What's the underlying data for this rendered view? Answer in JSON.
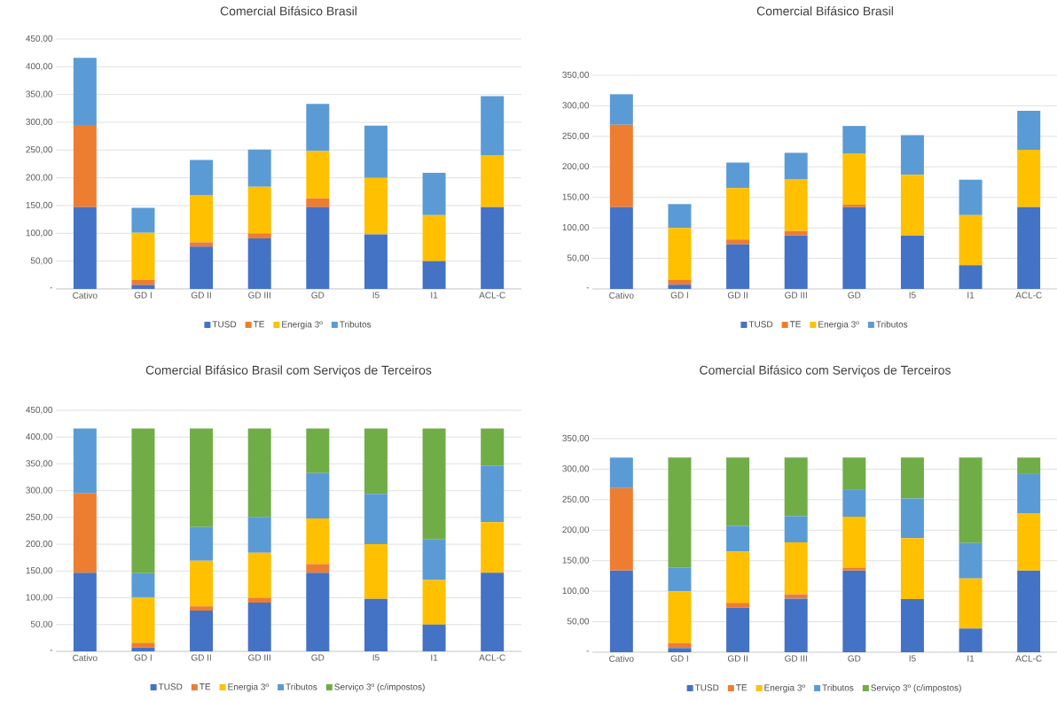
{
  "chart_data": [
    {
      "type": "bar",
      "stacked": true,
      "title": "Comercial Bifásico Brasil",
      "categories": [
        "Cativo",
        "GD I",
        "GD II",
        "GD III",
        "GD",
        "I5",
        "I1",
        "ACL-C"
      ],
      "series": [
        {
          "name": "TUSD",
          "color": "#4472c4",
          "values": [
            147,
            7,
            76,
            91,
            147,
            98,
            50,
            147
          ]
        },
        {
          "name": "TE",
          "color": "#ed7d31",
          "values": [
            148,
            9,
            8,
            9,
            16,
            0,
            0,
            0
          ]
        },
        {
          "name": "Energia 3º",
          "color": "#ffc000",
          "values": [
            0,
            85,
            85,
            84,
            85,
            102,
            83,
            94
          ]
        },
        {
          "name": "Tributos",
          "color": "#5b9bd5",
          "values": [
            121,
            45,
            63,
            67,
            85,
            94,
            76,
            106
          ]
        }
      ],
      "ylim": [
        0,
        450
      ],
      "yticks": [
        {
          "value": 0,
          "label": "-"
        },
        {
          "value": 50,
          "label": "50,00"
        },
        {
          "value": 100,
          "label": "100,00"
        },
        {
          "value": 150,
          "label": "150,00"
        },
        {
          "value": 200,
          "label": "200,00"
        },
        {
          "value": 250,
          "label": "250,00"
        },
        {
          "value": 300,
          "label": "300,00"
        },
        {
          "value": 350,
          "label": "350,00"
        },
        {
          "value": 400,
          "label": "400,00"
        },
        {
          "value": 450,
          "label": "450,00"
        }
      ],
      "grid": "y",
      "legend": "bottom"
    },
    {
      "type": "bar",
      "stacked": true,
      "title": "Comercial Bifásico Brasil",
      "categories": [
        "Cativo",
        "GD I",
        "GD II",
        "GD III",
        "GD",
        "I5",
        "I1",
        "ACL-C"
      ],
      "series": [
        {
          "name": "TUSD",
          "color": "#4472c4",
          "values": [
            134,
            7,
            73,
            88,
            134,
            87,
            39,
            134
          ]
        },
        {
          "name": "TE",
          "color": "#ed7d31",
          "values": [
            135,
            8,
            8,
            7,
            4,
            0,
            0,
            0
          ]
        },
        {
          "name": "Energia 3º",
          "color": "#ffc000",
          "values": [
            0,
            85,
            84,
            85,
            84,
            100,
            82,
            94
          ]
        },
        {
          "name": "Tributos",
          "color": "#5b9bd5",
          "values": [
            50,
            39,
            42,
            43,
            45,
            65,
            58,
            64
          ]
        }
      ],
      "ylim": [
        0,
        350
      ],
      "yticks": [
        {
          "value": 0,
          "label": "-"
        },
        {
          "value": 50,
          "label": "50,00"
        },
        {
          "value": 100,
          "label": "100,00"
        },
        {
          "value": 150,
          "label": "150,00"
        },
        {
          "value": 200,
          "label": "200,00"
        },
        {
          "value": 250,
          "label": "250,00"
        },
        {
          "value": 300,
          "label": "300,00"
        },
        {
          "value": 350,
          "label": "350,00"
        }
      ],
      "grid": "y",
      "legend": "bottom"
    },
    {
      "type": "bar",
      "stacked": true,
      "title": "Comercial Bifásico Brasil com Serviços de Terceiros",
      "categories": [
        "Cativo",
        "GD I",
        "GD II",
        "GD III",
        "GD",
        "I5",
        "I1",
        "ACL-C"
      ],
      "series": [
        {
          "name": "TUSD",
          "color": "#4472c4",
          "values": [
            147,
            7,
            76,
            91,
            147,
            98,
            50,
            147
          ]
        },
        {
          "name": "TE",
          "color": "#ed7d31",
          "values": [
            148,
            9,
            8,
            9,
            16,
            0,
            0,
            0
          ]
        },
        {
          "name": "Energia 3º",
          "color": "#ffc000",
          "values": [
            0,
            85,
            85,
            84,
            85,
            102,
            83,
            94
          ]
        },
        {
          "name": "Tributos",
          "color": "#5b9bd5",
          "values": [
            121,
            45,
            63,
            67,
            85,
            94,
            76,
            106
          ]
        },
        {
          "name": "Serviço 3º (c/impostos)",
          "color": "#70ad47",
          "values": [
            0,
            270,
            184,
            165,
            83,
            122,
            207,
            69
          ]
        }
      ],
      "ylim": [
        0,
        450
      ],
      "yticks": [
        {
          "value": 0,
          "label": "-"
        },
        {
          "value": 50,
          "label": "50,00"
        },
        {
          "value": 100,
          "label": "100,00"
        },
        {
          "value": 150,
          "label": "150,00"
        },
        {
          "value": 200,
          "label": "200,00"
        },
        {
          "value": 250,
          "label": "250,00"
        },
        {
          "value": 300,
          "label": "300,00"
        },
        {
          "value": 350,
          "label": "350,00"
        },
        {
          "value": 400,
          "label": "400,00"
        },
        {
          "value": 450,
          "label": "450,00"
        }
      ],
      "grid": "y",
      "legend": "bottom"
    },
    {
      "type": "bar",
      "stacked": true,
      "title": "Comercial Bifásico com Serviços de Terceiros",
      "categories": [
        "Cativo",
        "GD I",
        "GD II",
        "GD III",
        "GD",
        "I5",
        "I1",
        "ACL-C"
      ],
      "series": [
        {
          "name": "TUSD",
          "color": "#4472c4",
          "values": [
            134,
            7,
            73,
            88,
            134,
            87,
            39,
            134
          ]
        },
        {
          "name": "TE",
          "color": "#ed7d31",
          "values": [
            135,
            8,
            8,
            7,
            4,
            0,
            0,
            0
          ]
        },
        {
          "name": "Energia 3º",
          "color": "#ffc000",
          "values": [
            0,
            85,
            84,
            85,
            84,
            100,
            82,
            94
          ]
        },
        {
          "name": "Tributos",
          "color": "#5b9bd5",
          "values": [
            50,
            39,
            42,
            43,
            45,
            65,
            58,
            64
          ]
        },
        {
          "name": "Serviço 3º (c/impostos)",
          "color": "#70ad47",
          "values": [
            0,
            180,
            112,
            96,
            52,
            67,
            140,
            27
          ]
        }
      ],
      "ylim": [
        0,
        350
      ],
      "yticks": [
        {
          "value": 0,
          "label": "-"
        },
        {
          "value": 50,
          "label": "50,00"
        },
        {
          "value": 100,
          "label": "100,00"
        },
        {
          "value": 150,
          "label": "150,00"
        },
        {
          "value": 200,
          "label": "200,00"
        },
        {
          "value": 250,
          "label": "250,00"
        },
        {
          "value": 300,
          "label": "300,00"
        },
        {
          "value": 350,
          "label": "350,00"
        }
      ],
      "grid": "y",
      "legend": "bottom"
    }
  ]
}
